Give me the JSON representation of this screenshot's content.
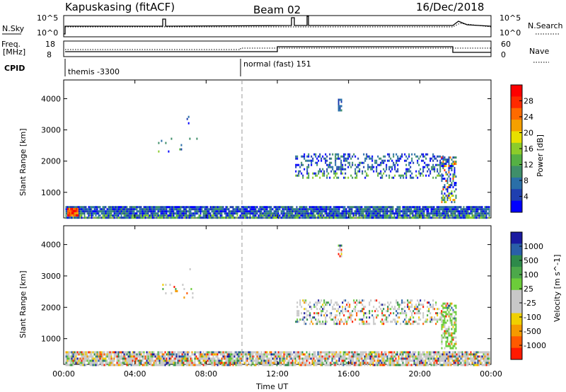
{
  "header": {
    "station": "Kapuskasing (fitACF)",
    "beam": "Beam 02",
    "date": "16/Dec/2018"
  },
  "strip_labels": {
    "nsky": "N.Sky",
    "nsky_top": "10^5",
    "nsky_bot": "10^0",
    "nsearch": "N.Search",
    "nsearch_top": "10^5",
    "nsearch_bot": "10^0",
    "freq": "Freq.",
    "freq_unit": "[MHz]",
    "freq_top": "18",
    "freq_bot": "8",
    "nave": "Nave",
    "nave_top": "60",
    "nave_bot": "0",
    "cpid": "CPID",
    "cpid_1": "themis -3300",
    "cpid_2": "normal (fast) 151"
  },
  "chart_data": [
    {
      "type": "heatmap",
      "name": "power",
      "ylabel": "Slant Range [km]",
      "xlabel": "Time UT",
      "xticks": [
        "00:00",
        "04:00",
        "08:00",
        "12:00",
        "16:00",
        "20:00",
        "00:00"
      ],
      "yticks": [
        "1000",
        "2000",
        "3000",
        "4000"
      ],
      "ylim": [
        180,
        4600
      ],
      "xlim_hours": [
        0,
        24
      ],
      "colorbar": {
        "label": "Power [dB]",
        "ticks": [
          "4",
          "8",
          "12",
          "16",
          "20",
          "24",
          "28"
        ],
        "colors": [
          "#0000ff",
          "#1f3fb0",
          "#2a6fa8",
          "#3f8f6a",
          "#55b044",
          "#8ccc2a",
          "#e8e000",
          "#f5a000",
          "#ff6a00",
          "#ff2a00",
          "#ff0000"
        ]
      },
      "regions": [
        {
          "t0": 0.1,
          "t1": 23.9,
          "r0": 190,
          "r1": 560,
          "density": 0.9
        },
        {
          "t0": 0.2,
          "t1": 0.8,
          "r0": 250,
          "r1": 500,
          "density": 1
        },
        {
          "t0": 13.0,
          "t1": 21.3,
          "r0": 1450,
          "r1": 2250,
          "density": 0.35
        },
        {
          "t0": 21.2,
          "t1": 22.0,
          "r0": 700,
          "r1": 2150,
          "density": 0.55
        },
        {
          "t0": 5.3,
          "t1": 7.6,
          "r0": 2300,
          "r1": 2750,
          "density": 0.07
        },
        {
          "t0": 6.9,
          "t1": 7.1,
          "r0": 3200,
          "r1": 3450,
          "density": 0.4
        },
        {
          "t0": 15.4,
          "t1": 15.6,
          "r0": 3600,
          "r1": 4000,
          "density": 0.6
        }
      ]
    },
    {
      "type": "heatmap",
      "name": "velocity",
      "ylabel": "Slant Range [km]",
      "xlabel": "Time UT",
      "xticks": [
        "00:00",
        "04:00",
        "08:00",
        "12:00",
        "16:00",
        "20:00",
        "00:00"
      ],
      "yticks": [
        "1000",
        "2000",
        "3000",
        "4000"
      ],
      "ylim": [
        180,
        4600
      ],
      "xlim_hours": [
        0,
        24
      ],
      "colorbar": {
        "label": "Velocity [m s^-1]",
        "ticks": [
          "1000",
          "500",
          "100",
          "25",
          "-25",
          "-100",
          "-500",
          "-1000"
        ],
        "colors": [
          "#1a1aa0",
          "#2a5fa8",
          "#2e8a4a",
          "#4ca84a",
          "#6ccc3a",
          "#c8c8c8",
          "#c8c8c8",
          "#f0d000",
          "#f59a00",
          "#ff5a00",
          "#ff1a00"
        ]
      },
      "regions": [
        {
          "t0": 0.1,
          "t1": 23.9,
          "r0": 190,
          "r1": 600,
          "density": 0.85
        },
        {
          "t0": 13.0,
          "t1": 21.3,
          "r0": 1450,
          "r1": 2250,
          "density": 0.35
        },
        {
          "t0": 21.2,
          "t1": 22.0,
          "r0": 700,
          "r1": 2150,
          "density": 0.55
        },
        {
          "t0": 5.3,
          "t1": 7.6,
          "r0": 2300,
          "r1": 2750,
          "density": 0.07
        },
        {
          "t0": 6.9,
          "t1": 7.1,
          "r0": 3200,
          "r1": 3450,
          "density": 0.4
        },
        {
          "t0": 15.4,
          "t1": 15.6,
          "r0": 3600,
          "r1": 4000,
          "density": 0.6
        }
      ]
    }
  ]
}
